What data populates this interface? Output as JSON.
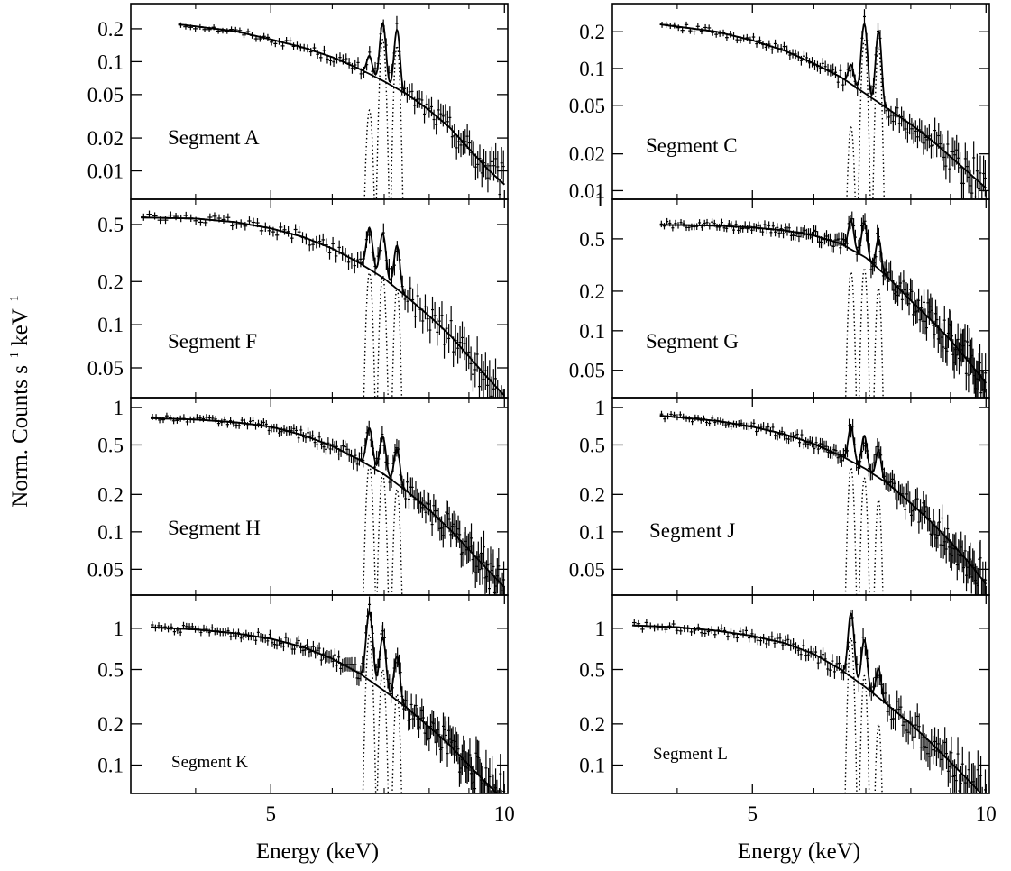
{
  "figure": {
    "ylabel": "Norm. Counts s",
    "ylabel_sup1": "−1",
    "ylabel_mid": " keV",
    "ylabel_sup2": "−1",
    "xlabel_left": "Energy (keV)",
    "xlabel_right": "Energy (keV)"
  },
  "chart_data": [
    {
      "type": "line",
      "panel": "Segment A",
      "title": "Segment A",
      "xscale": "log",
      "yscale": "log",
      "xlim": [
        3.3,
        10.1
      ],
      "ylim": [
        0.0055,
        0.34
      ],
      "xticks": [
        5,
        10
      ],
      "xticklabels": [
        "",
        ""
      ],
      "yticks": [
        0.2,
        0.1,
        0.05,
        0.02,
        0.01
      ],
      "yticklabels": [
        "0.2",
        "0.1",
        "0.05",
        "0.02",
        "0.01"
      ],
      "continuum": {
        "x": [
          3.8,
          4.5,
          5.0,
          5.5,
          6.0,
          6.5,
          7.0,
          7.5,
          8.0,
          8.5,
          9.0,
          9.5,
          10.0
        ],
        "y": [
          0.22,
          0.19,
          0.16,
          0.135,
          0.11,
          0.086,
          0.066,
          0.05,
          0.036,
          0.025,
          0.016,
          0.0105,
          0.0075
        ]
      },
      "lines": [
        {
          "center": 6.7,
          "peak": 0.036,
          "sigma": 0.05
        },
        {
          "center": 6.97,
          "peak": 0.16,
          "sigma": 0.05
        },
        {
          "center": 7.27,
          "peak": 0.14,
          "sigma": 0.05
        }
      ],
      "data_points": {
        "x_range": [
          3.8,
          10.0
        ],
        "count": 110
      }
    },
    {
      "type": "line",
      "panel": "Segment C",
      "title": "Segment C",
      "xscale": "log",
      "yscale": "log",
      "xlim": [
        3.3,
        10.1
      ],
      "ylim": [
        0.0085,
        0.34
      ],
      "xticks": [
        5,
        10
      ],
      "xticklabels": [
        "",
        ""
      ],
      "yticks": [
        0.2,
        0.1,
        0.05,
        0.02,
        0.01
      ],
      "yticklabels": [
        "0.2",
        "0.1",
        "0.05",
        "0.02",
        "0.01"
      ],
      "continuum": {
        "x": [
          3.8,
          4.5,
          5.0,
          5.5,
          6.0,
          6.5,
          7.0,
          7.5,
          8.0,
          8.5,
          9.0,
          9.5,
          10.0
        ],
        "y": [
          0.23,
          0.2,
          0.17,
          0.14,
          0.11,
          0.085,
          0.062,
          0.046,
          0.035,
          0.026,
          0.019,
          0.014,
          0.0105
        ]
      },
      "lines": [
        {
          "center": 6.7,
          "peak": 0.033,
          "sigma": 0.05
        },
        {
          "center": 6.97,
          "peak": 0.17,
          "sigma": 0.05
        },
        {
          "center": 7.27,
          "peak": 0.15,
          "sigma": 0.05
        }
      ],
      "data_points": {
        "x_range": [
          3.8,
          10.0
        ],
        "count": 130
      }
    },
    {
      "type": "line",
      "panel": "Segment F",
      "title": "Segment F",
      "xscale": "log",
      "yscale": "log",
      "xlim": [
        3.3,
        10.1
      ],
      "ylim": [
        0.031,
        0.75
      ],
      "xticks": [
        5,
        10
      ],
      "xticklabels": [
        "",
        ""
      ],
      "yticks": [
        0.5,
        0.2,
        0.1,
        0.05
      ],
      "yticklabels": [
        "0.5",
        "0.2",
        "0.1",
        "0.05"
      ],
      "continuum": {
        "x": [
          3.4,
          4.0,
          4.5,
          5.0,
          5.5,
          6.0,
          6.5,
          7.0,
          7.5,
          8.0,
          8.5,
          9.0,
          9.5,
          10.0
        ],
        "y": [
          0.56,
          0.55,
          0.52,
          0.47,
          0.41,
          0.34,
          0.27,
          0.21,
          0.155,
          0.115,
          0.085,
          0.06,
          0.043,
          0.032
        ]
      },
      "lines": [
        {
          "center": 6.7,
          "peak": 0.23,
          "sigma": 0.055
        },
        {
          "center": 6.97,
          "peak": 0.22,
          "sigma": 0.055
        },
        {
          "center": 7.27,
          "peak": 0.18,
          "sigma": 0.055
        }
      ],
      "data_points": {
        "x_range": [
          3.4,
          10.0
        ],
        "count": 115
      }
    },
    {
      "type": "line",
      "panel": "Segment G",
      "title": "Segment G",
      "xscale": "log",
      "yscale": "log",
      "xlim": [
        3.3,
        10.1
      ],
      "ylim": [
        0.031,
        1.0
      ],
      "xticks": [
        5,
        10
      ],
      "xticklabels": [
        "",
        ""
      ],
      "yticks": [
        1,
        0.5,
        0.2,
        0.1,
        0.05
      ],
      "yticklabels": [
        "1",
        "0.5",
        "0.2",
        "0.1",
        "0.05"
      ],
      "continuum": {
        "x": [
          3.8,
          4.5,
          5.0,
          5.5,
          6.0,
          6.5,
          7.0,
          7.5,
          8.0,
          8.5,
          9.0,
          9.5,
          10.0
        ],
        "y": [
          0.64,
          0.63,
          0.61,
          0.58,
          0.53,
          0.46,
          0.36,
          0.25,
          0.17,
          0.12,
          0.085,
          0.058,
          0.04
        ]
      },
      "lines": [
        {
          "center": 6.7,
          "peak": 0.28,
          "sigma": 0.05
        },
        {
          "center": 6.97,
          "peak": 0.3,
          "sigma": 0.05
        },
        {
          "center": 7.27,
          "peak": 0.21,
          "sigma": 0.05
        }
      ],
      "data_points": {
        "x_range": [
          3.8,
          10.0
        ],
        "count": 190
      }
    },
    {
      "type": "line",
      "panel": "Segment H",
      "title": "Segment H",
      "xscale": "log",
      "yscale": "log",
      "xlim": [
        3.3,
        10.1
      ],
      "ylim": [
        0.031,
        1.2
      ],
      "xticks": [
        5,
        10
      ],
      "xticklabels": [
        "",
        ""
      ],
      "yticks": [
        1,
        0.5,
        0.2,
        0.1,
        0.05
      ],
      "yticklabels": [
        "1",
        "0.5",
        "0.2",
        "0.1",
        "0.05"
      ],
      "continuum": {
        "x": [
          3.5,
          4.0,
          4.5,
          5.0,
          5.5,
          6.0,
          6.5,
          7.0,
          7.5,
          8.0,
          8.5,
          9.0,
          9.5,
          10.0
        ],
        "y": [
          0.82,
          0.8,
          0.76,
          0.7,
          0.6,
          0.49,
          0.38,
          0.29,
          0.21,
          0.15,
          0.105,
          0.072,
          0.05,
          0.036
        ]
      },
      "lines": [
        {
          "center": 6.7,
          "peak": 0.34,
          "sigma": 0.055
        },
        {
          "center": 6.97,
          "peak": 0.29,
          "sigma": 0.055
        },
        {
          "center": 7.27,
          "peak": 0.22,
          "sigma": 0.055
        }
      ],
      "data_points": {
        "x_range": [
          3.5,
          10.0
        ],
        "count": 170
      }
    },
    {
      "type": "line",
      "panel": "Segment J",
      "title": "Segment J",
      "xscale": "log",
      "yscale": "log",
      "xlim": [
        3.3,
        10.1
      ],
      "ylim": [
        0.031,
        1.2
      ],
      "xticks": [
        5,
        10
      ],
      "xticklabels": [
        "",
        ""
      ],
      "yticks": [
        1,
        0.5,
        0.2,
        0.1,
        0.05
      ],
      "yticklabels": [
        "1",
        "0.5",
        "0.2",
        "0.1",
        "0.05"
      ],
      "continuum": {
        "x": [
          3.8,
          4.5,
          5.0,
          5.5,
          6.0,
          6.5,
          7.0,
          7.5,
          8.0,
          8.5,
          9.0,
          9.5,
          10.0
        ],
        "y": [
          0.86,
          0.78,
          0.7,
          0.61,
          0.51,
          0.41,
          0.32,
          0.24,
          0.17,
          0.12,
          0.083,
          0.057,
          0.038
        ]
      },
      "lines": [
        {
          "center": 6.7,
          "peak": 0.33,
          "sigma": 0.05
        },
        {
          "center": 6.97,
          "peak": 0.27,
          "sigma": 0.05
        },
        {
          "center": 7.27,
          "peak": 0.18,
          "sigma": 0.05
        }
      ],
      "data_points": {
        "x_range": [
          3.8,
          10.0
        ],
        "count": 170
      }
    },
    {
      "type": "line",
      "panel": "Segment K",
      "title": "Segment K",
      "xscale": "log",
      "yscale": "log",
      "xlim": [
        3.3,
        10.1
      ],
      "ylim": [
        0.062,
        1.75
      ],
      "xticks": [
        5,
        10
      ],
      "xticklabels": [
        "5",
        "10"
      ],
      "yticks": [
        1,
        0.5,
        0.2,
        0.1
      ],
      "yticklabels": [
        "1",
        "0.5",
        "0.2",
        "0.1"
      ],
      "continuum": {
        "x": [
          3.5,
          4.0,
          4.5,
          5.0,
          5.5,
          6.0,
          6.5,
          7.0,
          7.5,
          8.0,
          8.5,
          9.0,
          9.5,
          10.0
        ],
        "y": [
          1.02,
          0.98,
          0.92,
          0.84,
          0.73,
          0.6,
          0.47,
          0.35,
          0.26,
          0.19,
          0.14,
          0.1,
          0.073,
          0.055
        ]
      },
      "lines": [
        {
          "center": 6.7,
          "peak": 0.9,
          "sigma": 0.055
        },
        {
          "center": 6.97,
          "peak": 0.5,
          "sigma": 0.055
        },
        {
          "center": 7.27,
          "peak": 0.33,
          "sigma": 0.055
        }
      ],
      "data_points": {
        "x_range": [
          3.5,
          10.0
        ],
        "count": 190
      }
    },
    {
      "type": "line",
      "panel": "Segment L",
      "title": "Segment L",
      "xscale": "log",
      "yscale": "log",
      "xlim": [
        3.3,
        10.1
      ],
      "ylim": [
        0.062,
        1.75
      ],
      "xticks": [
        5,
        10
      ],
      "xticklabels": [
        "5",
        "10"
      ],
      "yticks": [
        1,
        0.5,
        0.2,
        0.1
      ],
      "yticklabels": [
        "1",
        "0.5",
        "0.2",
        "0.1"
      ],
      "continuum": {
        "x": [
          3.5,
          4.0,
          4.5,
          5.0,
          5.5,
          6.0,
          6.5,
          7.0,
          7.5,
          8.0,
          8.5,
          9.0,
          9.5,
          10.0
        ],
        "y": [
          1.05,
          1.02,
          0.96,
          0.88,
          0.78,
          0.65,
          0.5,
          0.37,
          0.27,
          0.2,
          0.145,
          0.105,
          0.077,
          0.057
        ]
      },
      "lines": [
        {
          "center": 6.7,
          "peak": 0.85,
          "sigma": 0.05
        },
        {
          "center": 6.97,
          "peak": 0.45,
          "sigma": 0.05
        },
        {
          "center": 7.27,
          "peak": 0.2,
          "sigma": 0.05
        }
      ],
      "data_points": {
        "x_range": [
          3.5,
          10.0
        ],
        "count": 150
      }
    }
  ]
}
